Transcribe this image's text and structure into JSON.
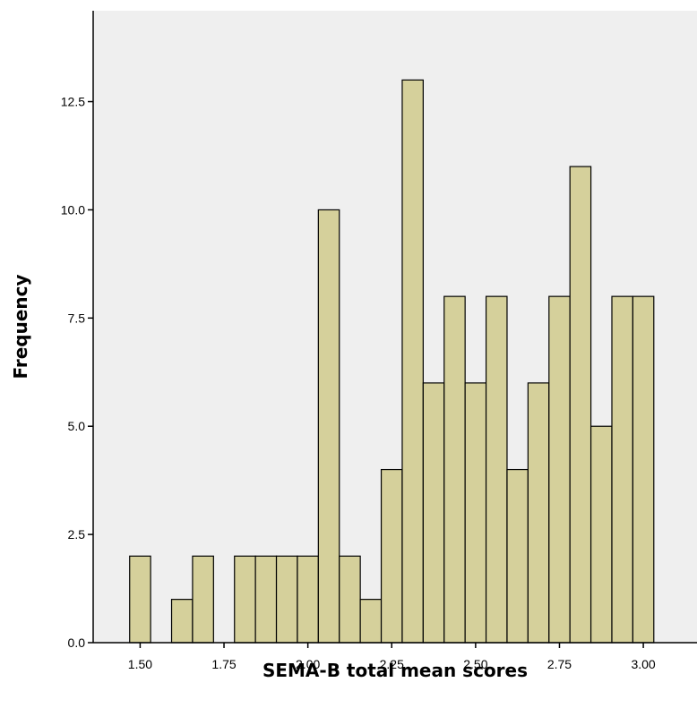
{
  "chart_data": {
    "type": "bar",
    "subtype": "histogram",
    "xlabel": "SEMA-B total mean scores",
    "ylabel": "Frequency",
    "x_ticks": [
      "1.50",
      "1.75",
      "2.00",
      "2.25",
      "2.50",
      "2.75",
      "3.00"
    ],
    "x_tick_values": [
      1.5,
      1.75,
      2.0,
      2.25,
      2.5,
      2.75,
      3.0
    ],
    "y_ticks": [
      "0.0",
      "2.5",
      "5.0",
      "7.5",
      "10.0",
      "12.5"
    ],
    "y_tick_values": [
      0,
      2.5,
      5,
      7.5,
      10,
      12.5
    ],
    "xlim": [
      1.36,
      3.16
    ],
    "ylim": [
      0,
      14.6
    ],
    "bin_width": 0.0625,
    "bin_centers": [
      1.5,
      1.625,
      1.6875,
      1.8125,
      1.875,
      1.9375,
      2.0,
      2.0625,
      2.125,
      2.1875,
      2.25,
      2.3125,
      2.375,
      2.4375,
      2.5,
      2.5625,
      2.625,
      2.6875,
      2.75,
      2.8125,
      2.875,
      2.9375,
      3.0
    ],
    "values": [
      2,
      1,
      2,
      2,
      2,
      2,
      2,
      10,
      2,
      1,
      4,
      13,
      6,
      8,
      6,
      8,
      4,
      6,
      8,
      11,
      5,
      8,
      8
    ],
    "grid": false,
    "colors": {
      "bar_fill": "#d5d09b",
      "bar_stroke": "#000000",
      "plot_background": "#efefef"
    }
  }
}
